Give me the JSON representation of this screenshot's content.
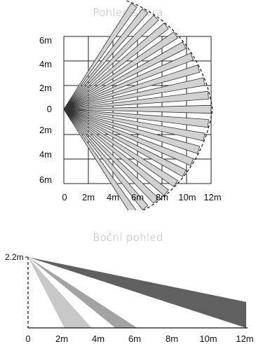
{
  "top_view": {
    "title": "Pohled shora",
    "y_ticks": [
      "6m",
      "4m",
      "2m",
      "0",
      "2m",
      "4m",
      "6m"
    ],
    "x_ticks": [
      "0",
      "2m",
      "4m",
      "6m",
      "8m",
      "10m",
      "12m"
    ],
    "beam_fill": "#d2d2d2",
    "beam_stroke": "#333333"
  },
  "side_view": {
    "title": "Boční pohled",
    "height_label": "2.2m",
    "x_ticks": [
      "0",
      "2m",
      "4m",
      "6m",
      "8m",
      "10m",
      "12m"
    ],
    "beams": [
      {
        "from_m": 2.0,
        "to_m": 3.5,
        "color": "#c8c8c8"
      },
      {
        "from_m": 4.8,
        "to_m": 6.0,
        "color": "#a3a3a3"
      },
      {
        "from_m": 11.9,
        "to_m": 11.9,
        "color": "#606060"
      }
    ]
  }
}
